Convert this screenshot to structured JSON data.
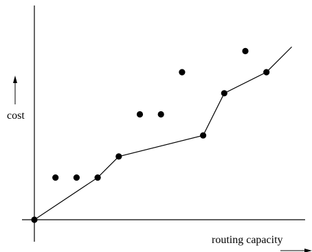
{
  "chart_data": {
    "type": "scatter",
    "title": "",
    "xlabel": "routing capacity",
    "ylabel": "cost",
    "xlim": [
      0,
      12.5
    ],
    "ylim": [
      0,
      10
    ],
    "grid": false,
    "legend": "none",
    "colors": {
      "ink": "#000000",
      "background": "#ffffff"
    },
    "series": [
      {
        "type": "line",
        "points": [
          [
            0,
            0
          ],
          [
            3,
            2
          ],
          [
            4,
            3
          ],
          [
            8,
            4
          ],
          [
            9,
            6
          ],
          [
            11,
            7
          ],
          [
            12.2,
            8.2
          ]
        ]
      },
      {
        "type": "scatter",
        "points": [
          [
            0,
            0
          ],
          [
            1,
            2
          ],
          [
            2,
            2
          ],
          [
            3,
            2
          ],
          [
            4,
            3
          ],
          [
            5,
            5
          ],
          [
            6,
            5
          ],
          [
            7,
            7
          ],
          [
            8,
            4
          ],
          [
            9,
            6
          ],
          [
            10,
            8
          ],
          [
            11,
            7
          ]
        ]
      }
    ]
  }
}
